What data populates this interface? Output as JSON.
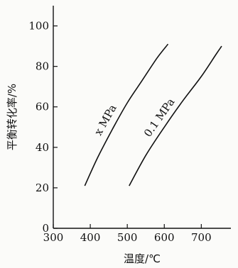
{
  "chart_data": {
    "type": "line",
    "xlabel": "温度/℃",
    "ylabel": "平衡转化率/%",
    "xlim": [
      300,
      780
    ],
    "ylim": [
      0,
      110
    ],
    "xticks": [
      300,
      400,
      500,
      600,
      700
    ],
    "yticks": [
      0,
      20,
      40,
      60,
      80,
      100
    ],
    "grid": false,
    "legend": "none",
    "series": [
      {
        "label": "x MPa",
        "x": [
          385,
          420,
          460,
          500,
          540,
          580,
          610
        ],
        "y": [
          21,
          35,
          49,
          62,
          73,
          84,
          91
        ]
      },
      {
        "label": "0.1 MPa",
        "x": [
          505,
          550,
          600,
          650,
          700,
          740,
          755
        ],
        "y": [
          21,
          36,
          50,
          63,
          75,
          86,
          90
        ]
      }
    ]
  }
}
